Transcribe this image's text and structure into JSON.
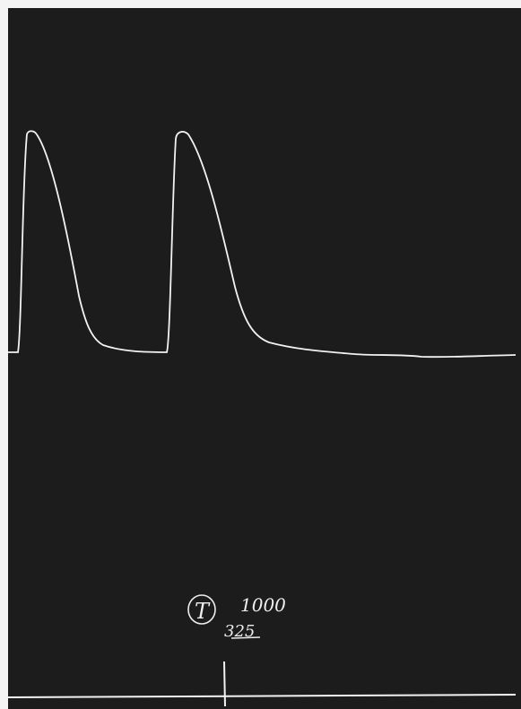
{
  "annotation": {
    "circled": "T",
    "number": "1000",
    "sub": "325"
  }
}
